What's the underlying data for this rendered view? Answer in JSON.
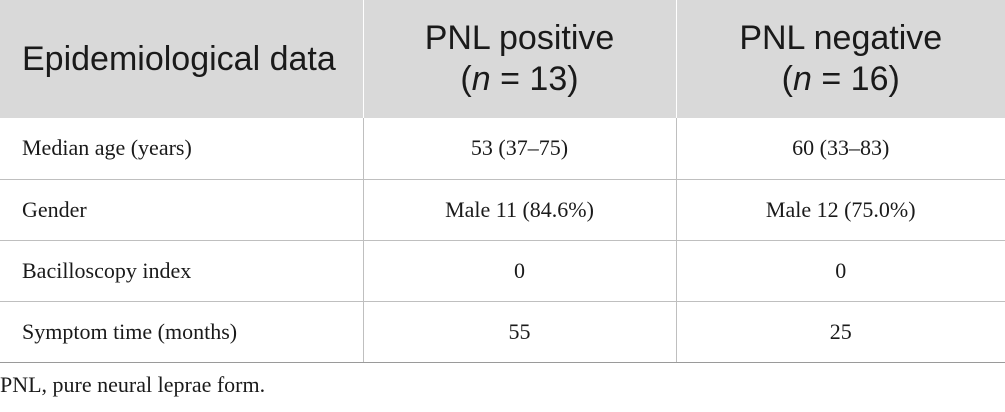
{
  "table": {
    "header": {
      "col1": "Epidemiological data",
      "col2_label": "PNL positive",
      "col2_n_symbol": "n",
      "col2_n_value": " = 13)",
      "col3_label": "PNL negative",
      "col3_n_symbol": "n",
      "col3_n_value": " = 16)"
    },
    "rows": [
      {
        "label": "Median age (years)",
        "positive": "53 (37–75)",
        "negative": "60 (33–83)"
      },
      {
        "label": "Gender",
        "positive": "Male 11 (84.6%)",
        "negative": "Male 12 (75.0%)"
      },
      {
        "label": "Bacilloscopy index",
        "positive": "0",
        "negative": "0"
      },
      {
        "label": "Symptom time (months)",
        "positive": "55",
        "negative": "25"
      }
    ],
    "colors": {
      "header_bg": "#d9d9d9",
      "rule": "#bfbfbf"
    }
  },
  "footnote": "PNL, pure neural leprae form."
}
